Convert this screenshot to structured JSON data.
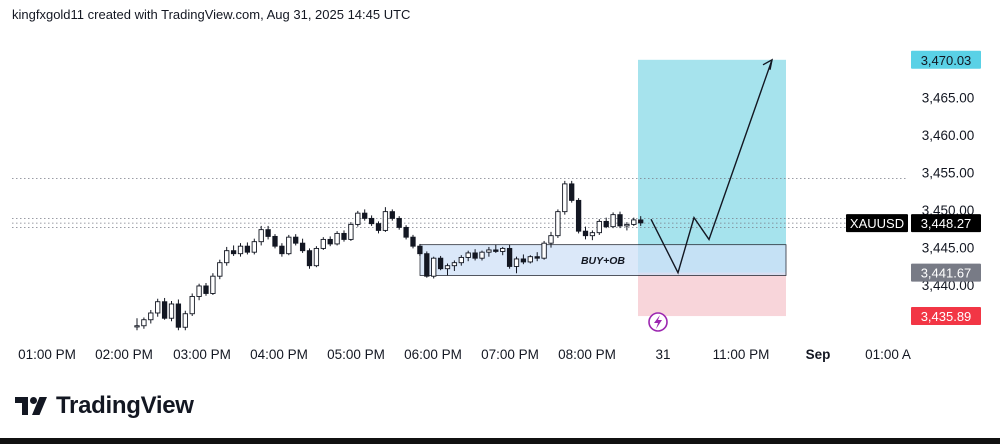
{
  "header": {
    "text": "kingfxgold11 created with TradingView.com, Aug 31, 2025 14:45 UTC"
  },
  "brand": {
    "name": "TradingView",
    "logo_icon": "tradingview-logo-icon"
  },
  "colors": {
    "bull_body": "#ffffff",
    "bear_body": "#131722",
    "target_zone": "#a6e3ed",
    "stop_zone": "#f8d5da",
    "ob_zone": "#cfe0f7",
    "current_tag": "#000000",
    "target_tag": "#5ad1e6",
    "stop_tag": "#f23645",
    "alt_tag": "#787b86"
  },
  "annotations": {
    "ob_label": "BUY+OB",
    "event_icon": "lightning-event-icon"
  },
  "chart_data": {
    "type": "candlestick",
    "symbol": "XAUUSD",
    "ylim": [
      3433.5,
      3474.0
    ],
    "y_ticks": [
      3440,
      3445,
      3450,
      3455,
      3460,
      3465
    ],
    "y_tick_labels": [
      "3,440.00",
      "3,445.00",
      "3,450.00",
      "3,455.00",
      "3,460.00",
      "3,465.00"
    ],
    "x_tick_labels": [
      {
        "label": "01:00 PM",
        "bold": false
      },
      {
        "label": "02:00 PM",
        "bold": false
      },
      {
        "label": "03:00 PM",
        "bold": false
      },
      {
        "label": "04:00 PM",
        "bold": false
      },
      {
        "label": "05:00 PM",
        "bold": false
      },
      {
        "label": "06:00 PM",
        "bold": false
      },
      {
        "label": "07:00 PM",
        "bold": false
      },
      {
        "label": "08:00 PM",
        "bold": false
      },
      {
        "label": "31",
        "bold": false
      },
      {
        "label": "11:00 PM",
        "bold": false
      },
      {
        "label": "Sep",
        "bold": true
      },
      {
        "label": "01:00 A",
        "bold": false
      }
    ],
    "price_tags": [
      {
        "label": "3,470.03",
        "value": 3470.03,
        "kind": "target"
      },
      {
        "label": "3,448.27",
        "value": 3448.27,
        "kind": "current",
        "symbol": "XAUUSD"
      },
      {
        "label": "3,441.67",
        "value": 3441.67,
        "kind": "alt"
      },
      {
        "label": "3,435.89",
        "value": 3435.89,
        "kind": "stop"
      }
    ],
    "dotted_levels": [
      3454.2,
      3448.9,
      3448.27,
      3447.7
    ],
    "position": {
      "entry": 3441.67,
      "target": 3470.03,
      "stop": 3435.89
    },
    "order_block": {
      "top": 3445.4,
      "bottom": 3441.3
    },
    "projection_path": [
      3448.8,
      3441.67,
      3449.0,
      3446.1,
      3470.03
    ],
    "candles": [
      [
        3434.5,
        3435.6,
        3434.0,
        3434.6
      ],
      [
        3434.6,
        3435.7,
        3434.2,
        3435.4
      ],
      [
        3435.4,
        3436.7,
        3434.9,
        3436.3
      ],
      [
        3436.3,
        3438.2,
        3435.8,
        3437.8
      ],
      [
        3437.8,
        3438.3,
        3435.4,
        3435.6
      ],
      [
        3435.6,
        3437.9,
        3435.2,
        3437.5
      ],
      [
        3437.5,
        3438.1,
        3434.0,
        3434.4
      ],
      [
        3434.4,
        3436.6,
        3434.0,
        3436.2
      ],
      [
        3436.2,
        3438.9,
        3435.9,
        3438.5
      ],
      [
        3438.5,
        3440.2,
        3438.0,
        3439.9
      ],
      [
        3439.9,
        3440.3,
        3438.6,
        3438.9
      ],
      [
        3438.9,
        3441.6,
        3438.7,
        3441.2
      ],
      [
        3441.2,
        3443.4,
        3440.8,
        3443.0
      ],
      [
        3443.0,
        3445.1,
        3442.6,
        3444.6
      ],
      [
        3444.6,
        3445.3,
        3443.9,
        3444.2
      ],
      [
        3444.2,
        3445.6,
        3443.8,
        3445.2
      ],
      [
        3445.2,
        3445.7,
        3444.1,
        3444.4
      ],
      [
        3444.4,
        3446.2,
        3444.1,
        3445.8
      ],
      [
        3445.8,
        3447.9,
        3445.3,
        3447.4
      ],
      [
        3447.4,
        3447.9,
        3446.1,
        3446.5
      ],
      [
        3446.5,
        3446.8,
        3444.9,
        3445.2
      ],
      [
        3445.2,
        3445.6,
        3443.8,
        3444.2
      ],
      [
        3444.2,
        3446.7,
        3444.0,
        3446.4
      ],
      [
        3446.4,
        3446.8,
        3445.3,
        3445.6
      ],
      [
        3445.6,
        3446.2,
        3444.3,
        3444.6
      ],
      [
        3444.6,
        3444.9,
        3442.2,
        3442.6
      ],
      [
        3442.6,
        3445.2,
        3442.4,
        3444.9
      ],
      [
        3444.9,
        3446.4,
        3444.7,
        3446.1
      ],
      [
        3446.1,
        3446.5,
        3445.2,
        3445.5
      ],
      [
        3445.5,
        3447.2,
        3445.3,
        3446.9
      ],
      [
        3446.9,
        3447.3,
        3445.8,
        3446.1
      ],
      [
        3446.1,
        3448.4,
        3445.9,
        3448.1
      ],
      [
        3448.1,
        3449.9,
        3447.8,
        3449.6
      ],
      [
        3449.6,
        3450.1,
        3448.6,
        3448.9
      ],
      [
        3448.9,
        3449.3,
        3447.9,
        3448.2
      ],
      [
        3448.2,
        3448.5,
        3446.9,
        3447.3
      ],
      [
        3447.3,
        3450.4,
        3447.1,
        3449.8
      ],
      [
        3449.8,
        3450.1,
        3448.6,
        3448.9
      ],
      [
        3448.9,
        3449.2,
        3447.4,
        3447.7
      ],
      [
        3447.7,
        3448.0,
        3446.1,
        3446.4
      ],
      [
        3446.4,
        3446.7,
        3444.9,
        3445.2
      ],
      [
        3445.2,
        3445.5,
        3443.9,
        3444.2
      ],
      [
        3444.2,
        3444.5,
        3441.0,
        3441.2
      ],
      [
        3441.2,
        3443.8,
        3440.9,
        3443.6
      ],
      [
        3443.6,
        3443.9,
        3442.0,
        3442.2
      ],
      [
        3442.2,
        3442.9,
        3441.3,
        3442.6
      ],
      [
        3442.6,
        3443.3,
        3441.9,
        3443.0
      ],
      [
        3443.0,
        3444.0,
        3442.6,
        3443.7
      ],
      [
        3443.7,
        3444.6,
        3443.2,
        3444.3
      ],
      [
        3444.3,
        3444.8,
        3443.3,
        3443.6
      ],
      [
        3443.6,
        3444.6,
        3443.3,
        3444.4
      ],
      [
        3444.4,
        3445.1,
        3443.8,
        3444.7
      ],
      [
        3444.7,
        3445.4,
        3444.3,
        3444.5
      ],
      [
        3444.5,
        3445.1,
        3444.0,
        3444.9
      ],
      [
        3444.9,
        3445.4,
        3442.2,
        3442.5
      ],
      [
        3442.5,
        3443.8,
        3441.6,
        3443.5
      ],
      [
        3443.5,
        3444.1,
        3442.8,
        3443.1
      ],
      [
        3443.1,
        3444.0,
        3442.9,
        3443.8
      ],
      [
        3443.8,
        3444.4,
        3443.2,
        3443.6
      ],
      [
        3443.6,
        3445.9,
        3443.4,
        3445.6
      ],
      [
        3445.6,
        3447.1,
        3445.0,
        3446.6
      ],
      [
        3446.6,
        3450.1,
        3446.3,
        3449.8
      ],
      [
        3449.8,
        3453.9,
        3449.4,
        3453.5
      ],
      [
        3453.5,
        3453.9,
        3451.0,
        3451.3
      ],
      [
        3451.3,
        3451.6,
        3446.9,
        3447.2
      ],
      [
        3447.2,
        3447.8,
        3446.1,
        3446.6
      ],
      [
        3446.6,
        3447.3,
        3446.0,
        3447.0
      ],
      [
        3447.0,
        3448.8,
        3446.7,
        3448.5
      ],
      [
        3448.5,
        3449.0,
        3447.6,
        3447.8
      ],
      [
        3447.8,
        3449.7,
        3447.6,
        3449.4
      ],
      [
        3449.4,
        3449.8,
        3447.6,
        3447.9
      ],
      [
        3447.9,
        3448.4,
        3447.3,
        3448.1
      ],
      [
        3448.1,
        3449.0,
        3447.9,
        3448.7
      ],
      [
        3448.7,
        3449.2,
        3447.9,
        3448.3
      ]
    ]
  }
}
